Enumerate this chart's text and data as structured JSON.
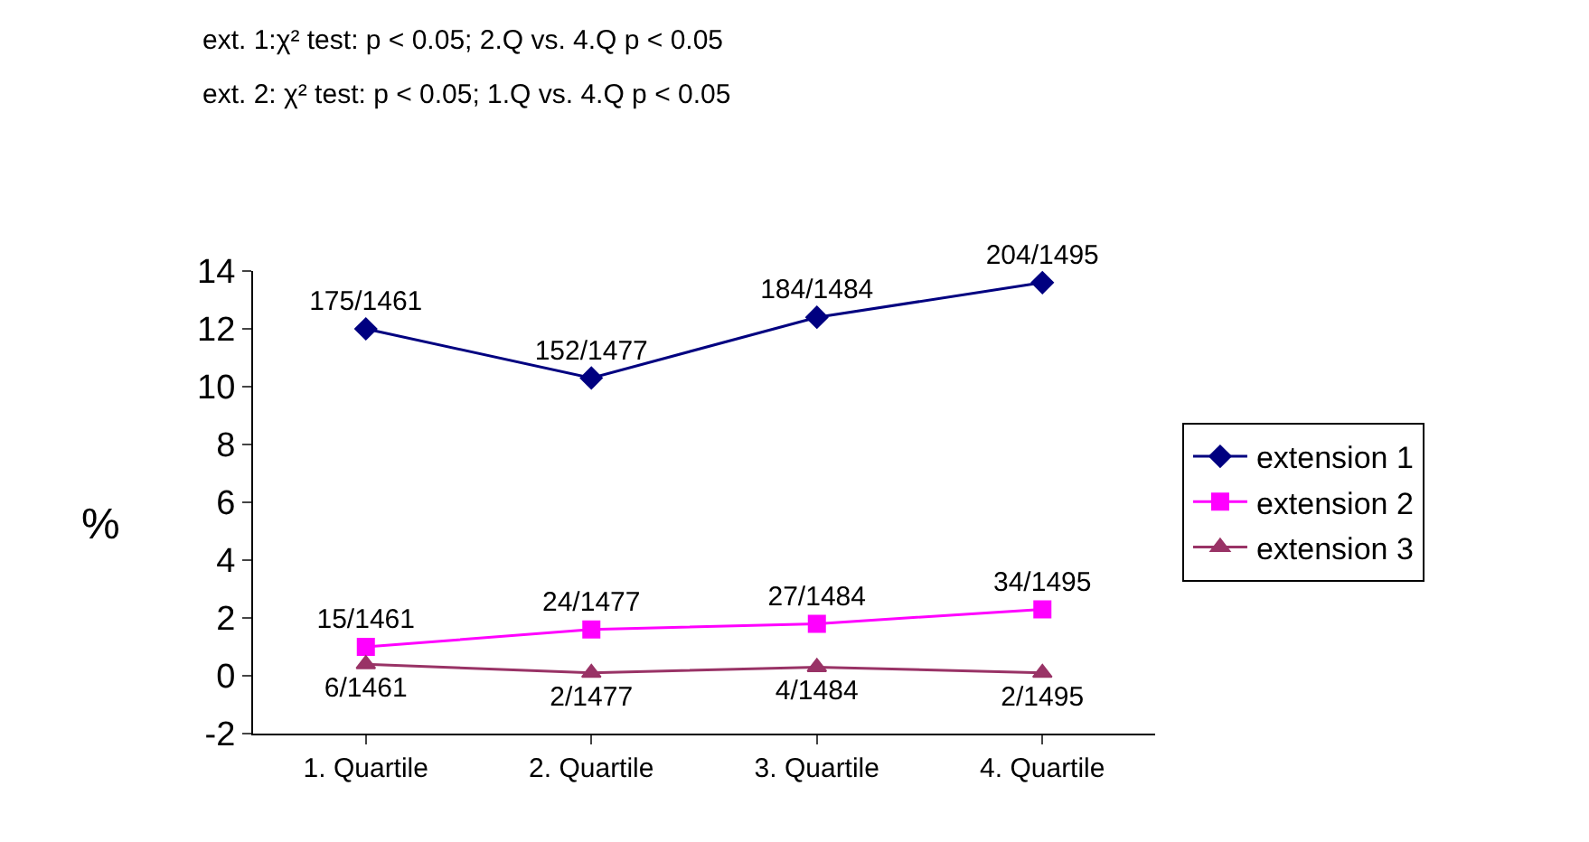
{
  "chart_data": {
    "type": "line",
    "annotations": [
      "ext. 1:χ² test: p < 0.05; 2.Q vs. 4.Q p < 0.05",
      "ext. 2: χ² test: p < 0.05; 1.Q vs. 4.Q p < 0.05"
    ],
    "ylabel": "%",
    "categories": [
      "1. Quartile",
      "2. Quartile",
      "3. Quartile",
      "4. Quartile"
    ],
    "series": [
      {
        "name": "extension 1",
        "color": "#000080",
        "marker": "diamond",
        "values": [
          12.0,
          10.3,
          12.4,
          13.6
        ],
        "value_labels": [
          "175/1461",
          "152/1477",
          "184/1484",
          "204/1495"
        ]
      },
      {
        "name": "extension 2",
        "color": "#ff00ff",
        "marker": "square",
        "values": [
          1.0,
          1.6,
          1.8,
          2.3
        ],
        "value_labels": [
          "15/1461",
          "24/1477",
          "27/1484",
          "34/1495"
        ]
      },
      {
        "name": "extension 3",
        "color": "#993366",
        "marker": "triangle",
        "values": [
          0.4,
          0.1,
          0.3,
          0.1
        ],
        "value_labels": [
          "6/1461",
          "2/1477",
          "4/1484",
          "2/1495"
        ]
      }
    ],
    "ylim": [
      -2,
      14
    ],
    "yticks": [
      -2,
      0,
      2,
      4,
      6,
      8,
      10,
      12,
      14
    ],
    "legend": "right",
    "line_style": "solid"
  }
}
